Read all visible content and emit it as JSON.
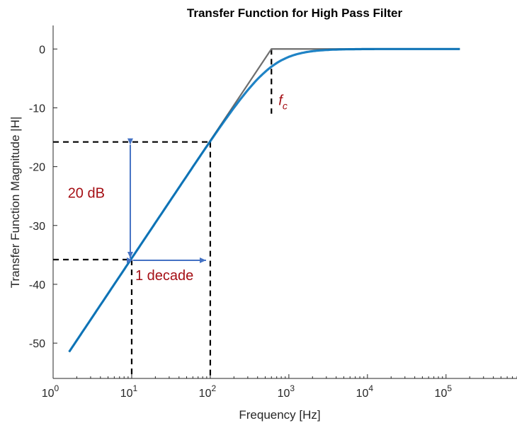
{
  "chart_data": {
    "type": "line",
    "title": "Transfer Function for High Pass Filter",
    "xlabel": "Frequency [Hz]",
    "ylabel": "Transfer Function Magnitude |H|",
    "xscale": "log",
    "xlim": [
      1,
      800000
    ],
    "ylim": [
      -56,
      4
    ],
    "grid": false,
    "colors": {
      "response": "#0072bd",
      "asymptote": "#6e6e6e",
      "annotation": "#a50f15",
      "arrow": "#4472c4"
    },
    "x_ticks": [
      {
        "base": "10",
        "exp": "0",
        "value": 1
      },
      {
        "base": "10",
        "exp": "1",
        "value": 10
      },
      {
        "base": "10",
        "exp": "2",
        "value": 100
      },
      {
        "base": "10",
        "exp": "3",
        "value": 1000
      },
      {
        "base": "10",
        "exp": "4",
        "value": 10000
      },
      {
        "base": "10",
        "exp": "5",
        "value": 100000
      }
    ],
    "y_ticks": [
      {
        "value": 0,
        "label": "0"
      },
      {
        "value": -10,
        "label": "-10"
      },
      {
        "value": -20,
        "label": "-20"
      },
      {
        "value": -30,
        "label": "-30"
      },
      {
        "value": -40,
        "label": "-40"
      },
      {
        "value": -50,
        "label": "-50"
      }
    ],
    "cutoff_frequency": 600,
    "series": [
      {
        "kind": "magnitude",
        "f_min": 1.6,
        "f_max": 150000,
        "fc": 600
      },
      {
        "kind": "asymptote",
        "x": [
          1.6,
          600,
          150000
        ],
        "y": [
          -51.5,
          0,
          0
        ]
      }
    ],
    "annotations": {
      "fc": {
        "base": "f",
        "sub": "c",
        "x": 600,
        "y": -10
      },
      "vertical": {
        "label": "20 dB",
        "x": 10,
        "y_from": -35.8,
        "y_to": -15.8
      },
      "horizontal": {
        "label": "1 decade",
        "x_from": 10,
        "x_to": 100,
        "y": -35.8
      }
    },
    "guide_points": [
      {
        "x": 10,
        "y": -35.8
      },
      {
        "x": 100,
        "y": -15.8
      }
    ]
  }
}
